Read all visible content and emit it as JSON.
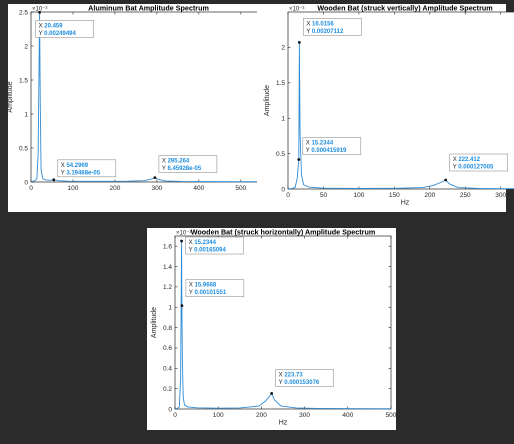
{
  "colors": {
    "background": "#2b2b2b",
    "figure": "#ffffff",
    "axes_frame": "#262626",
    "series": "#2f8bd5",
    "datatip_text": "#1f8ee0",
    "datatip_label": "#262626",
    "datatip_border": "#7f7f7f"
  },
  "chart_data": [
    {
      "type": "line",
      "title": "Aluminum Bat Amplitude Spectrum",
      "xlabel": "",
      "ylabel": "Amplitude",
      "y_exponent": "×10⁻³",
      "xlim": [
        0,
        560
      ],
      "ylim": [
        0,
        2.5
      ],
      "xticks": [
        0,
        100,
        200,
        300,
        400,
        500
      ],
      "yticks": [
        0,
        0.5,
        1,
        1.5,
        2,
        2.5
      ],
      "xtick_labels": [
        "0",
        "100",
        "200",
        "300",
        "400",
        "500"
      ],
      "ytick_labels": [
        "0",
        "0.5",
        "1",
        "1.5",
        "2",
        "2.5"
      ],
      "series": [
        {
          "x": [
            0,
            5,
            10,
            14,
            17,
            19,
            20.459,
            22,
            24,
            28,
            35,
            45,
            54.2969,
            65,
            90,
            130,
            180,
            230,
            270,
            285,
            295.264,
            305,
            320,
            360,
            420,
            480,
            540,
            560
          ],
          "y": [
            0.01,
            0.01,
            0.02,
            0.05,
            0.4,
            1.6,
            2.49494,
            1.2,
            0.18,
            0.05,
            0.03,
            0.025,
            0.0319468,
            0.02,
            0.012,
            0.01,
            0.01,
            0.012,
            0.02,
            0.04,
            0.0645928,
            0.035,
            0.015,
            0.008,
            0.006,
            0.005,
            0.004,
            0.004
          ]
        }
      ],
      "datatips": [
        {
          "x": 20.459,
          "y": 2.49494,
          "x_label": "X",
          "y_label": "Y",
          "x_text": "20.459",
          "y_text": "0.00249494"
        },
        {
          "x": 54.2969,
          "y": 0.0319468,
          "x_label": "X",
          "y_label": "Y",
          "x_text": "54.2969",
          "y_text": "3.19468e-05"
        },
        {
          "x": 295.264,
          "y": 0.0645928,
          "x_label": "X",
          "y_label": "Y",
          "x_text": "295.264",
          "y_text": "6.45928e-05"
        }
      ]
    },
    {
      "type": "line",
      "title": "Wooden Bat (struck vertically) Amplitude Spectrum",
      "xlabel": "Hz",
      "ylabel": "Amplitude",
      "y_exponent": "×10⁻³",
      "xlim": [
        0,
        330
      ],
      "ylim": [
        0,
        2.5
      ],
      "xticks": [
        0,
        50,
        100,
        150,
        200,
        250,
        300
      ],
      "yticks": [
        0,
        0.5,
        1,
        1.5,
        2
      ],
      "xtick_labels": [
        "0",
        "50",
        "100",
        "150",
        "200",
        "250",
        "300"
      ],
      "ytick_labels": [
        "0",
        "0.5",
        "1",
        "1.5",
        "2"
      ],
      "series": [
        {
          "x": [
            0,
            5,
            10,
            13,
            15.2344,
            16.0156,
            17,
            19,
            22,
            30,
            50,
            100,
            150,
            190,
            205,
            215,
            222.412,
            228,
            240,
            270,
            300,
            330
          ],
          "y": [
            0.005,
            0.006,
            0.02,
            0.15,
            0.415919,
            2.07112,
            0.8,
            0.2,
            0.06,
            0.025,
            0.012,
            0.008,
            0.01,
            0.02,
            0.05,
            0.09,
            0.127005,
            0.07,
            0.02,
            0.008,
            0.005,
            0.004
          ]
        }
      ],
      "datatips": [
        {
          "x": 16.0156,
          "y": 2.07112,
          "x_label": "X",
          "y_label": "Y",
          "x_text": "16.0156",
          "y_text": "0.00207112"
        },
        {
          "x": 15.2344,
          "y": 0.415919,
          "x_label": "X",
          "y_label": "Y",
          "x_text": "15.2344",
          "y_text": "0.000415919"
        },
        {
          "x": 222.412,
          "y": 0.127005,
          "x_label": "X",
          "y_label": "Y",
          "x_text": "222.412",
          "y_text": "0.000127005"
        }
      ]
    },
    {
      "type": "line",
      "title": "Wooden Bat (struck horizontally) Amplitude Spectrum",
      "xlabel": "Hz",
      "ylabel": "Amplitude",
      "y_exponent": "×10⁻³",
      "xlim": [
        0,
        500
      ],
      "ylim": [
        0,
        1.7
      ],
      "xticks": [
        0,
        100,
        200,
        300,
        400,
        500
      ],
      "yticks": [
        0,
        0.2,
        0.4,
        0.6,
        0.8,
        1,
        1.2,
        1.4,
        1.6
      ],
      "xtick_labels": [
        "0",
        "100",
        "200",
        "300",
        "400",
        "500"
      ],
      "ytick_labels": [
        "0",
        "0.2",
        "0.4",
        "0.6",
        "0.8",
        "1",
        "1.2",
        "1.4",
        "1.6"
      ],
      "series": [
        {
          "x": [
            0,
            5,
            10,
            13,
            15.2344,
            15.9668,
            17,
            19,
            22,
            30,
            50,
            100,
            150,
            195,
            210,
            218,
            223.73,
            230,
            245,
            280,
            330,
            400,
            460,
            500
          ],
          "y": [
            0.004,
            0.005,
            0.02,
            0.3,
            1.65094,
            1.01551,
            0.5,
            0.12,
            0.04,
            0.02,
            0.012,
            0.008,
            0.01,
            0.03,
            0.08,
            0.12,
            0.153076,
            0.09,
            0.03,
            0.01,
            0.006,
            0.004,
            0.003,
            0.003
          ]
        }
      ],
      "datatips": [
        {
          "x": 15.2344,
          "y": 1.65094,
          "x_label": "X",
          "y_label": "Y",
          "x_text": "15.2344",
          "y_text": "0.00165094"
        },
        {
          "x": 15.9668,
          "y": 1.01551,
          "x_label": "X",
          "y_label": "Y",
          "x_text": "15.9668",
          "y_text": "0.00101551"
        },
        {
          "x": 223.73,
          "y": 0.153076,
          "x_label": "X",
          "y_label": "Y",
          "x_text": "223.73",
          "y_text": "0.000153076"
        }
      ]
    }
  ]
}
